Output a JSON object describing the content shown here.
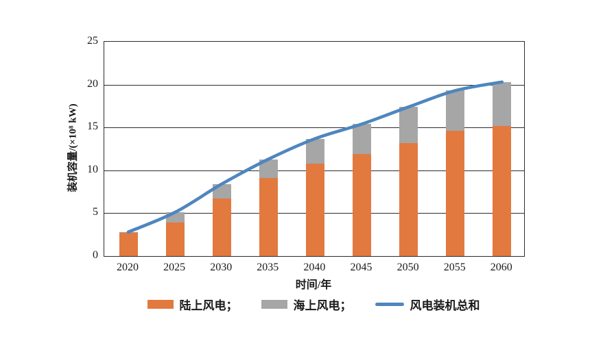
{
  "chart_data": {
    "type": "bar",
    "stacked": true,
    "orientation": "vertical",
    "categories": [
      "2020",
      "2025",
      "2030",
      "2035",
      "2040",
      "2045",
      "2050",
      "2055",
      "2060"
    ],
    "series": [
      {
        "name": "陆上风电",
        "type": "bar",
        "color": "#E2793F",
        "values": [
          2.7,
          3.9,
          6.7,
          9.1,
          10.8,
          11.9,
          13.2,
          14.6,
          15.2
        ]
      },
      {
        "name": "海上风电",
        "type": "bar",
        "color": "#A6A6A6",
        "values": [
          0.1,
          1.2,
          1.7,
          2.2,
          2.9,
          3.5,
          4.2,
          4.7,
          5.1
        ]
      },
      {
        "name": "风电装机总和",
        "type": "line",
        "color": "#4F86BE",
        "values": [
          2.8,
          5.1,
          8.4,
          11.3,
          13.7,
          15.4,
          17.4,
          19.3,
          20.3
        ]
      }
    ],
    "title": "",
    "xlabel": "时间/年",
    "ylabel": "装机容量/(×10⁸ kW)",
    "ylim": [
      0,
      25
    ],
    "yticks": [
      0,
      5,
      10,
      15,
      20,
      25
    ],
    "grid": true,
    "frame": true,
    "legend_position": "bottom",
    "legend": [
      {
        "label": "陆上风电；",
        "swatch": "rect",
        "color": "#E2793F"
      },
      {
        "label": "海上风电；",
        "swatch": "rect",
        "color": "#A6A6A6"
      },
      {
        "label": "风电装机总和",
        "swatch": "line",
        "color": "#4F86BE"
      }
    ],
    "axis_color": "#2b2b2b",
    "text_color": "#1a1a1a"
  }
}
